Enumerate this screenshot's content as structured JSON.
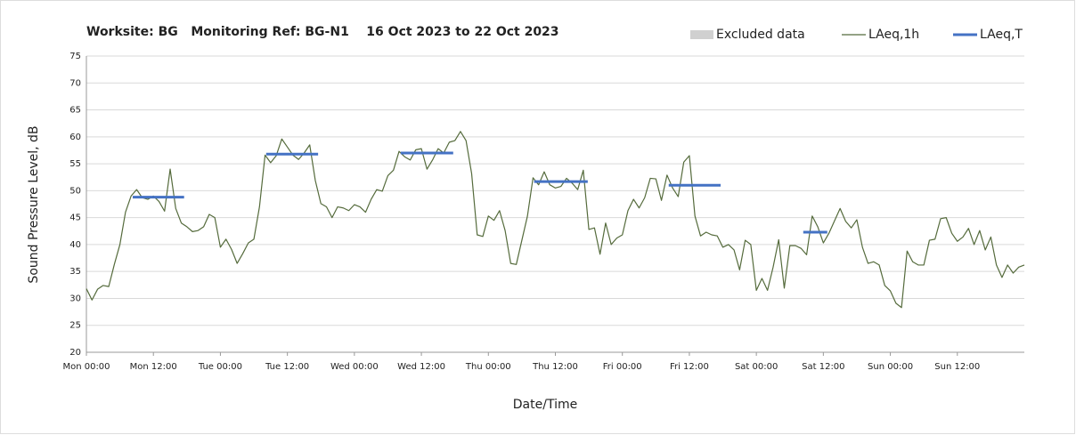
{
  "chart_data": {
    "type": "line",
    "title": "Worksite: BG   Monitoring Ref: BG-N1    16 Oct 2023 to 22 Oct 2023",
    "xlabel": "Date/Time",
    "ylabel": "Sound Pressure Level, dB",
    "legend": "top-right",
    "grid": true,
    "excluded": {
      "name": "Excluded data",
      "color": "#d0d0d0"
    },
    "xlim": [
      0,
      168
    ],
    "ylim": [
      20,
      75
    ],
    "yticks": [
      20,
      25,
      30,
      35,
      40,
      45,
      50,
      55,
      60,
      65,
      70,
      75
    ],
    "xticks": [
      {
        "value": 0,
        "label": "Mon 00:00"
      },
      {
        "value": 12,
        "label": "Mon 12:00"
      },
      {
        "value": 24,
        "label": "Tue 00:00"
      },
      {
        "value": 36,
        "label": "Tue 12:00"
      },
      {
        "value": 48,
        "label": "Wed 00:00"
      },
      {
        "value": 60,
        "label": "Wed 12:00"
      },
      {
        "value": 72,
        "label": "Thu 00:00"
      },
      {
        "value": 84,
        "label": "Thu 12:00"
      },
      {
        "value": 96,
        "label": "Fri 00:00"
      },
      {
        "value": 108,
        "label": "Fri 12:00"
      },
      {
        "value": 120,
        "label": "Sat 00:00"
      },
      {
        "value": 132,
        "label": "Sat 12:00"
      },
      {
        "value": 144,
        "label": "Sun 00:00"
      },
      {
        "value": 156,
        "label": "Sun 12:00"
      }
    ],
    "series": [
      {
        "name": "LAeq,1h",
        "color": "#556b3c",
        "width": 1.2,
        "x": [
          0,
          1,
          2,
          3,
          4,
          5,
          6,
          7,
          8,
          9,
          10,
          11,
          12,
          13,
          14,
          15,
          16,
          17,
          18,
          19,
          20,
          21,
          22,
          23,
          24,
          25,
          26,
          27,
          28,
          29,
          30,
          31,
          32,
          33,
          34,
          35,
          36,
          37,
          38,
          39,
          40,
          41,
          42,
          43,
          44,
          45,
          46,
          47,
          48,
          49,
          50,
          51,
          52,
          53,
          54,
          55,
          56,
          57,
          58,
          59,
          60,
          61,
          62,
          63,
          64,
          65,
          66,
          67,
          68,
          69,
          70,
          71,
          72,
          73,
          74,
          75,
          76,
          77,
          78,
          79,
          80,
          81,
          82,
          83,
          84,
          85,
          86,
          87,
          88,
          89,
          90,
          91,
          92,
          93,
          94,
          95,
          96,
          97,
          98,
          99,
          100,
          101,
          102,
          103,
          104,
          105,
          106,
          107,
          108,
          109,
          110,
          111,
          112,
          113,
          114,
          115,
          116,
          117,
          118,
          119,
          120,
          121,
          122,
          123,
          124,
          125,
          126,
          127,
          128,
          129,
          130,
          131,
          132,
          133,
          134,
          135,
          136,
          137,
          138,
          139,
          140,
          141,
          142,
          143,
          144,
          145,
          146,
          147,
          148,
          149,
          150,
          151,
          152,
          153,
          154,
          155,
          156,
          157,
          158,
          159,
          160,
          161,
          162,
          163,
          164,
          165,
          166,
          167,
          168
        ],
        "values": [
          31.8,
          29.7,
          31.7,
          32.4,
          32.2,
          36.3,
          40,
          46,
          49,
          50.2,
          48.7,
          48.4,
          49,
          48,
          46.2,
          54,
          46.7,
          44,
          43.3,
          42.4,
          42.6,
          43.3,
          45.6,
          45,
          39.5,
          41,
          39.1,
          36.5,
          38.3,
          40.3,
          41,
          47,
          56.6,
          55.2,
          56.5,
          59.6,
          58.1,
          56.6,
          55.8,
          57,
          58.5,
          51.9,
          47.6,
          47,
          45,
          47,
          46.8,
          46.3,
          47.4,
          47,
          46,
          48.4,
          50.2,
          49.9,
          52.8,
          53.8,
          57.3,
          56.3,
          55.7,
          57.6,
          57.8,
          54,
          55.7,
          57.8,
          57,
          59,
          59.3,
          61,
          59.3,
          53.2,
          41.8,
          41.5,
          45.3,
          44.5,
          46.3,
          42.6,
          36.5,
          36.3,
          40.8,
          45.3,
          52.4,
          51.1,
          53.5,
          51.1,
          50.5,
          50.8,
          52.3,
          51.4,
          50.2,
          53.8,
          42.8,
          43.1,
          38.2,
          44,
          40,
          41.2,
          41.8,
          46.3,
          48.4,
          46.8,
          48.7,
          52.3,
          52.2,
          48.2,
          52.9,
          50.5,
          48.9,
          55.3,
          56.5,
          45.3,
          41.6,
          42.3,
          41.8,
          41.6,
          39.5,
          40,
          39,
          35.3,
          40.8,
          40,
          31.5,
          33.7,
          31.5,
          35.8,
          40.9,
          31.9,
          39.8,
          39.8,
          39.3,
          38.1,
          45.3,
          43.3,
          40.3,
          42.1,
          44.4,
          46.7,
          44.3,
          43.1,
          44.6,
          39.5,
          36.5,
          36.8,
          36.2,
          32.4,
          31.4,
          29.1,
          28.3,
          38.8,
          36.8,
          36.2,
          36.2,
          40.8,
          41,
          44.8,
          45,
          42.1,
          40.6,
          41.4,
          43,
          40,
          42.6,
          39,
          41.4,
          36.2,
          33.9,
          36.2,
          34.7,
          35.8,
          36.2
        ]
      },
      {
        "name": "LAeq,T",
        "color": "#4472c4",
        "width": 3,
        "x": [
          8.3,
          17.5,
          null,
          32.2,
          41.5,
          null,
          56.3,
          65.7,
          null,
          80.2,
          89.8,
          null,
          104.3,
          113.6,
          null,
          128.4,
          132.7
        ],
        "values": [
          48.8,
          48.8,
          null,
          56.8,
          56.8,
          null,
          57,
          57,
          null,
          51.7,
          51.7,
          null,
          51,
          51,
          null,
          42.3,
          42.3
        ]
      }
    ]
  }
}
